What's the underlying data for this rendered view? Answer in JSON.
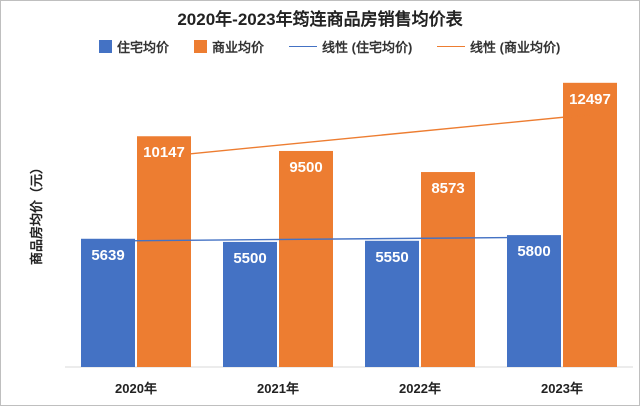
{
  "chart_data": {
    "type": "bar",
    "title": "2020年-2023年筠连商品房销售均价表",
    "categories": [
      "2020年",
      "2021年",
      "2022年",
      "2023年"
    ],
    "series": [
      {
        "name": "住宅均价",
        "values": [
          5639,
          5500,
          5550,
          5800
        ],
        "color": "#4472c4"
      },
      {
        "name": "商业均价",
        "values": [
          10147,
          9500,
          8573,
          12497
        ],
        "color": "#ed7d31"
      }
    ],
    "trendlines": [
      {
        "name": "线性 (住宅均价)",
        "color": "#4472c4"
      },
      {
        "name": "线性 (商业均价)",
        "color": "#ed7d31"
      }
    ],
    "ylabel": "商品房均价（元）",
    "ylim": [
      0,
      13500
    ],
    "grid": false,
    "legend_position": "top"
  }
}
